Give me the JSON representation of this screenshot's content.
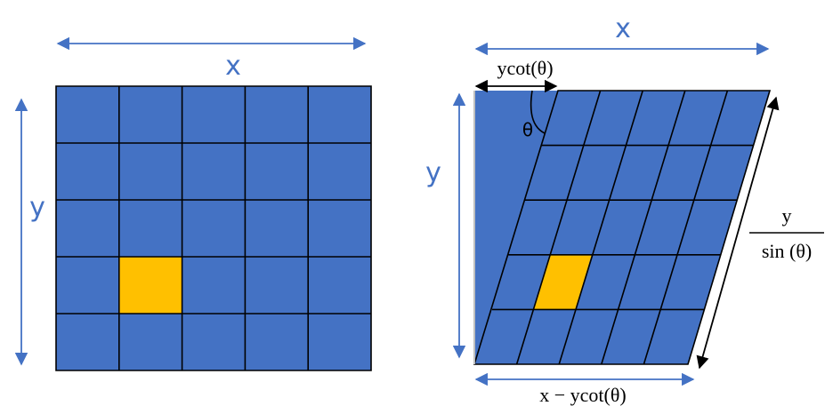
{
  "left": {
    "width_label": "x",
    "height_label": "y"
  },
  "right": {
    "width_label": "x",
    "height_label": "y",
    "offset_label": "ycot(θ)",
    "angle_label": "θ",
    "slant_numerator": "y",
    "slant_denominator": "sin (θ)",
    "bottom_label": "x − ycot(θ)"
  }
}
